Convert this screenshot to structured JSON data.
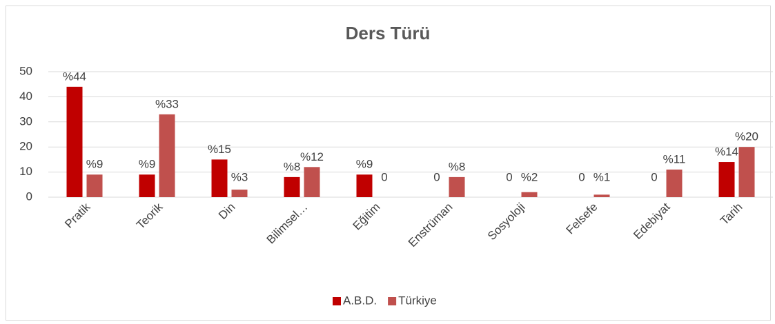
{
  "chart_data": {
    "type": "bar",
    "title": "Ders Türü",
    "categories": [
      "Pratik",
      "Teorik",
      "Din",
      "Bilimsel…",
      "Eğitim",
      "Enstrüman",
      "Sosyoloji",
      "Felsefe",
      "Edebiyat",
      "Tarih"
    ],
    "series": [
      {
        "name": "A.B.D.",
        "color": "#c00000",
        "values": [
          44,
          9,
          15,
          8,
          9,
          0,
          0,
          0,
          0,
          14
        ],
        "value_labels": [
          "%44",
          "%9",
          "%15",
          "%8",
          "%9",
          "0",
          "0",
          "0",
          "0",
          "%14"
        ]
      },
      {
        "name": "Türkiye",
        "color": "#c0504d",
        "values": [
          9,
          33,
          3,
          12,
          0,
          8,
          2,
          1,
          11,
          20
        ],
        "value_labels": [
          "%9",
          "%33",
          "%3",
          "%12",
          "0",
          "%8",
          "%2",
          "%1",
          "%11",
          "%20"
        ]
      }
    ],
    "ylim": [
      0,
      50
    ],
    "yticks": [
      0,
      10,
      20,
      30,
      40,
      50
    ],
    "grid": true,
    "legend": "bottom"
  }
}
